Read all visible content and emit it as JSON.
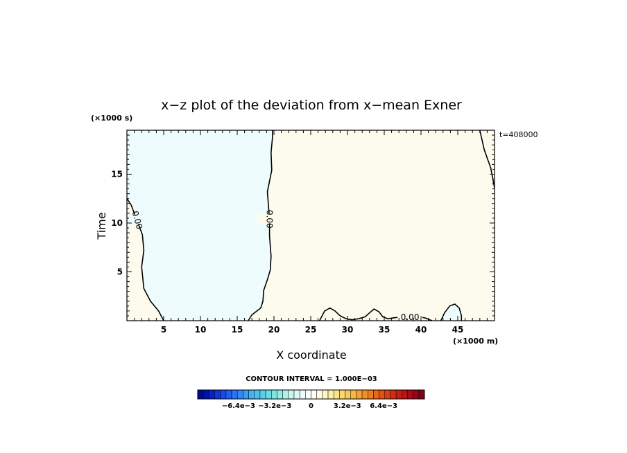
{
  "chart_data": {
    "type": "contour",
    "title": "x−z plot of the deviation from x−mean Exner",
    "xlabel": "X coordinate",
    "ylabel": "Time",
    "x_unit": "(×1000 m)",
    "y_unit": "(×1000 s)",
    "time_stamp": "t=408000",
    "xlim": [
      0,
      50
    ],
    "ylim": [
      0,
      19.5
    ],
    "x_ticks": [
      5,
      10,
      15,
      20,
      25,
      30,
      35,
      40,
      45
    ],
    "y_ticks": [
      5,
      10,
      15
    ],
    "contour_level_label": "0.00",
    "contour_interval": "CONTOUR INTERVAL = 1.000E−03",
    "colors": {
      "negative_fill": "#eefcfd",
      "positive_fill": "#fcfbee",
      "line": "#000000"
    },
    "zero_contours": [
      {
        "name": "left",
        "points": [
          [
            0,
            12.5
          ],
          [
            0.6,
            11.8
          ],
          [
            1.4,
            10.2
          ],
          [
            2.1,
            8.8
          ],
          [
            2.3,
            7.2
          ],
          [
            2.0,
            5.5
          ],
          [
            2.3,
            3.3
          ],
          [
            3.2,
            2.0
          ],
          [
            4.3,
            1.0
          ],
          [
            5.0,
            0
          ]
        ]
      },
      {
        "name": "middle",
        "points": [
          [
            16.5,
            0
          ],
          [
            17.0,
            0.6
          ],
          [
            18.2,
            1.3
          ],
          [
            18.5,
            2.0
          ],
          [
            18.6,
            3.1
          ],
          [
            19.1,
            4.2
          ],
          [
            19.5,
            5.2
          ],
          [
            19.6,
            6.6
          ],
          [
            19.4,
            8.7
          ],
          [
            19.4,
            10.4
          ],
          [
            19.1,
            13.2
          ],
          [
            19.7,
            15.4
          ],
          [
            19.6,
            17.2
          ],
          [
            19.8,
            18.8
          ],
          [
            19.8,
            19.5
          ]
        ]
      },
      {
        "name": "right",
        "points": [
          [
            48.0,
            19.5
          ],
          [
            48.6,
            17.5
          ],
          [
            49.5,
            15.6
          ],
          [
            50,
            13.6
          ]
        ]
      },
      {
        "name": "bump-1",
        "points": [
          [
            26.2,
            0
          ],
          [
            26.9,
            1.0
          ],
          [
            27.6,
            1.3
          ],
          [
            28.3,
            1.0
          ],
          [
            29.0,
            0.5
          ],
          [
            29.8,
            0.2
          ],
          [
            30.6,
            0.1
          ],
          [
            31.5,
            0.2
          ],
          [
            32.4,
            0.4
          ],
          [
            33.0,
            0.8
          ],
          [
            33.6,
            1.2
          ],
          [
            34.3,
            0.9
          ],
          [
            34.8,
            0.4
          ],
          [
            35.5,
            0.2
          ],
          [
            36.3,
            0.3
          ],
          [
            37.5,
            0.4
          ],
          [
            39.5,
            0.4
          ],
          [
            40.5,
            0.3
          ],
          [
            41.5,
            0
          ]
        ]
      },
      {
        "name": "bump-2",
        "points": [
          [
            42.7,
            0
          ],
          [
            43.2,
            0.8
          ],
          [
            43.9,
            1.5
          ],
          [
            44.6,
            1.7
          ],
          [
            45.2,
            1.3
          ],
          [
            45.5,
            0.5
          ],
          [
            45.5,
            0
          ]
        ]
      }
    ],
    "colorbar": {
      "ticks": [
        "−6.4e−3",
        "−3.2e−3",
        "0",
        "3.2e−3",
        "6.4e−3"
      ],
      "tick_values": [
        -0.0064,
        -0.0032,
        0,
        0.0032,
        0.0064
      ],
      "range": [
        -0.01,
        0.01
      ],
      "n_boxes": 40,
      "colors": [
        "#000c8c",
        "#0011a8",
        "#0a22c4",
        "#1235d6",
        "#1a4ae3",
        "#225eec",
        "#2a73f2",
        "#3288f4",
        "#3a9cf4",
        "#44aff2",
        "#4fbfef",
        "#5cceeb",
        "#6bdbe6",
        "#7de5e3",
        "#94ede3",
        "#aef3e8",
        "#c7f7ef",
        "#dcfaf4",
        "#ecfcf9",
        "#f8fefd",
        "#fefef3",
        "#fefbdf",
        "#fdf6c4",
        "#fcefa6",
        "#fbe588",
        "#f9d86c",
        "#f7c955",
        "#f5b842",
        "#f2a534",
        "#ef9128",
        "#eb7c1f",
        "#e66718",
        "#e05214",
        "#d83f12",
        "#cf2e12",
        "#c41f14",
        "#b61416",
        "#a50c17",
        "#930717",
        "#7e0315"
      ]
    }
  }
}
